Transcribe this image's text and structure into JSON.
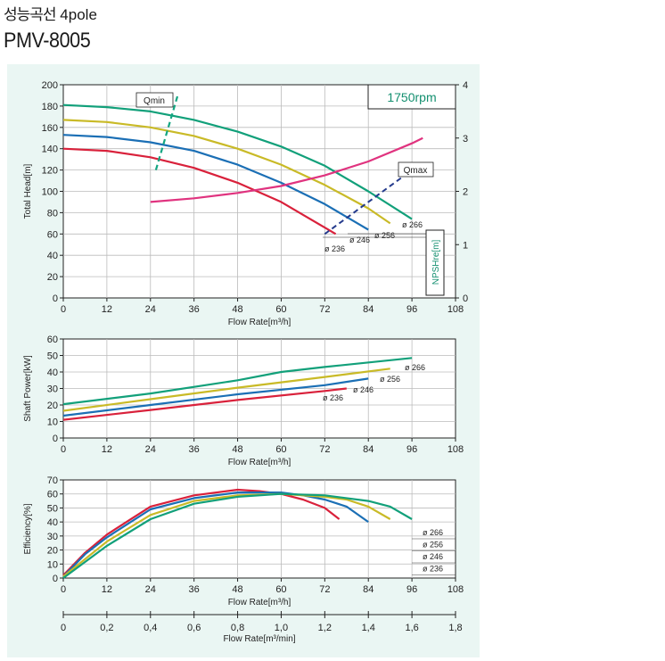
{
  "header": {
    "korean_title": "성능곡선",
    "poles": "4pole",
    "model": "PMV-8005"
  },
  "colors": {
    "d236": "#d9213b",
    "d246": "#1b6fb5",
    "d256": "#c9ba27",
    "d266": "#12a07a",
    "npsh": "#e0337f",
    "qline": "#14a682",
    "qmax": "#243a8c",
    "panel_bg": "#eaf6f3"
  },
  "chart_data": [
    {
      "type": "line",
      "xlabel": "Flow Rate[m³/h]",
      "ylabel": "Total Head[m]",
      "y2label": "NPSHre[m]",
      "xlim": [
        0,
        108
      ],
      "ylim": [
        0,
        200
      ],
      "y2lim": [
        0,
        4
      ],
      "xticks": [
        "0",
        "12",
        "24",
        "36",
        "48",
        "60",
        "72",
        "84",
        "96",
        "108"
      ],
      "yticks": [
        "0",
        "20",
        "40",
        "60",
        "80",
        "100",
        "120",
        "140",
        "160",
        "180",
        "200"
      ],
      "y2ticks": [
        "0",
        "1",
        "2",
        "3",
        "4"
      ],
      "speed_label": "1750rpm",
      "series": [
        {
          "name": "ø 236",
          "color": "#d9213b",
          "x": [
            0,
            12,
            24,
            36,
            48,
            60,
            66,
            72,
            75
          ],
          "y": [
            140,
            138,
            132,
            122,
            108,
            90,
            78,
            66,
            60
          ]
        },
        {
          "name": "ø 246",
          "color": "#1b6fb5",
          "x": [
            0,
            12,
            24,
            36,
            48,
            60,
            72,
            78,
            84
          ],
          "y": [
            153,
            151,
            146,
            138,
            125,
            108,
            88,
            76,
            64
          ]
        },
        {
          "name": "ø 256",
          "color": "#c9ba27",
          "x": [
            0,
            12,
            24,
            36,
            48,
            60,
            72,
            84,
            90
          ],
          "y": [
            167,
            165,
            160,
            152,
            140,
            125,
            106,
            84,
            70
          ]
        },
        {
          "name": "ø 266",
          "color": "#12a07a",
          "x": [
            0,
            12,
            24,
            36,
            48,
            60,
            72,
            84,
            96
          ],
          "y": [
            181,
            179,
            175,
            167,
            156,
            142,
            124,
            100,
            74
          ]
        }
      ],
      "npsh": {
        "name": "NPSHre[m]",
        "color": "#e0337f",
        "x": [
          24,
          36,
          48,
          60,
          72,
          84,
          96,
          99
        ],
        "y": [
          1.8,
          1.87,
          1.97,
          2.1,
          2.3,
          2.56,
          2.9,
          3.0
        ]
      },
      "qmin": {
        "label": "Qmin",
        "x": [
          25.5,
          31.5
        ],
        "y": [
          120,
          190
        ]
      },
      "qmax": {
        "label": "Qmax",
        "x": [
          72,
          96
        ],
        "y": [
          60,
          120
        ]
      }
    },
    {
      "type": "line",
      "xlabel": "Flow Rate[m³/h]",
      "ylabel": "Shaft Power[kW]",
      "xlim": [
        0,
        108
      ],
      "ylim": [
        0,
        60
      ],
      "xticks": [
        "0",
        "12",
        "24",
        "36",
        "48",
        "60",
        "72",
        "84",
        "96",
        "108"
      ],
      "yticks": [
        "0",
        "10",
        "20",
        "30",
        "40",
        "50",
        "60"
      ],
      "series": [
        {
          "name": "ø 236",
          "color": "#d9213b",
          "x": [
            0,
            24,
            48,
            72,
            78
          ],
          "y": [
            11,
            17,
            23,
            28.5,
            30
          ]
        },
        {
          "name": "ø 246",
          "color": "#1b6fb5",
          "x": [
            0,
            24,
            48,
            72,
            84
          ],
          "y": [
            13.5,
            20,
            26.5,
            32,
            36
          ]
        },
        {
          "name": "ø 256",
          "color": "#c9ba27",
          "x": [
            0,
            24,
            48,
            72,
            90
          ],
          "y": [
            16.5,
            23.5,
            30.5,
            37,
            42
          ]
        },
        {
          "name": "ø 266",
          "color": "#12a07a",
          "x": [
            0,
            24,
            48,
            60,
            72,
            96
          ],
          "y": [
            20.5,
            27,
            35,
            40,
            43,
            48.5
          ]
        }
      ]
    },
    {
      "type": "line",
      "xlabel": "Flow Rate[m³/h]",
      "xlabel2": "Flow Rate[m³/min]",
      "ylabel": "Efficiency[%]",
      "xlim": [
        0,
        108
      ],
      "ylim": [
        0,
        70
      ],
      "xticks": [
        "0",
        "12",
        "24",
        "36",
        "48",
        "60",
        "72",
        "84",
        "96",
        "108"
      ],
      "yticks": [
        "0",
        "10",
        "20",
        "30",
        "40",
        "50",
        "60",
        "70"
      ],
      "x2ticks": [
        "0",
        "0,2",
        "0,4",
        "0,6",
        "0,8",
        "1,0",
        "1,2",
        "1,4",
        "1,6",
        "1,8"
      ],
      "legend": [
        "ø 266",
        "ø 256",
        "ø 246",
        "ø 236"
      ],
      "series": [
        {
          "name": "ø 236",
          "color": "#d9213b",
          "x": [
            0,
            6,
            12,
            18,
            24,
            36,
            48,
            54,
            60,
            66,
            72,
            76
          ],
          "y": [
            2,
            18,
            31,
            41,
            51,
            59,
            63,
            62,
            60,
            56,
            50,
            42
          ]
        },
        {
          "name": "ø 246",
          "color": "#1b6fb5",
          "x": [
            0,
            6,
            12,
            18,
            24,
            36,
            48,
            60,
            66,
            72,
            78,
            84
          ],
          "y": [
            1,
            17,
            29,
            39,
            49,
            57,
            61,
            61,
            59,
            56,
            51,
            40
          ]
        },
        {
          "name": "ø 256",
          "color": "#c9ba27",
          "x": [
            0,
            12,
            24,
            36,
            48,
            60,
            72,
            78,
            84,
            90
          ],
          "y": [
            1,
            26,
            45,
            55,
            59,
            60,
            58,
            56,
            51,
            42
          ]
        },
        {
          "name": "ø 266",
          "color": "#12a07a",
          "x": [
            0,
            12,
            24,
            36,
            48,
            60,
            72,
            84,
            90,
            96
          ],
          "y": [
            0,
            23,
            42,
            53,
            58,
            60,
            59,
            55,
            51,
            42
          ]
        }
      ]
    }
  ]
}
